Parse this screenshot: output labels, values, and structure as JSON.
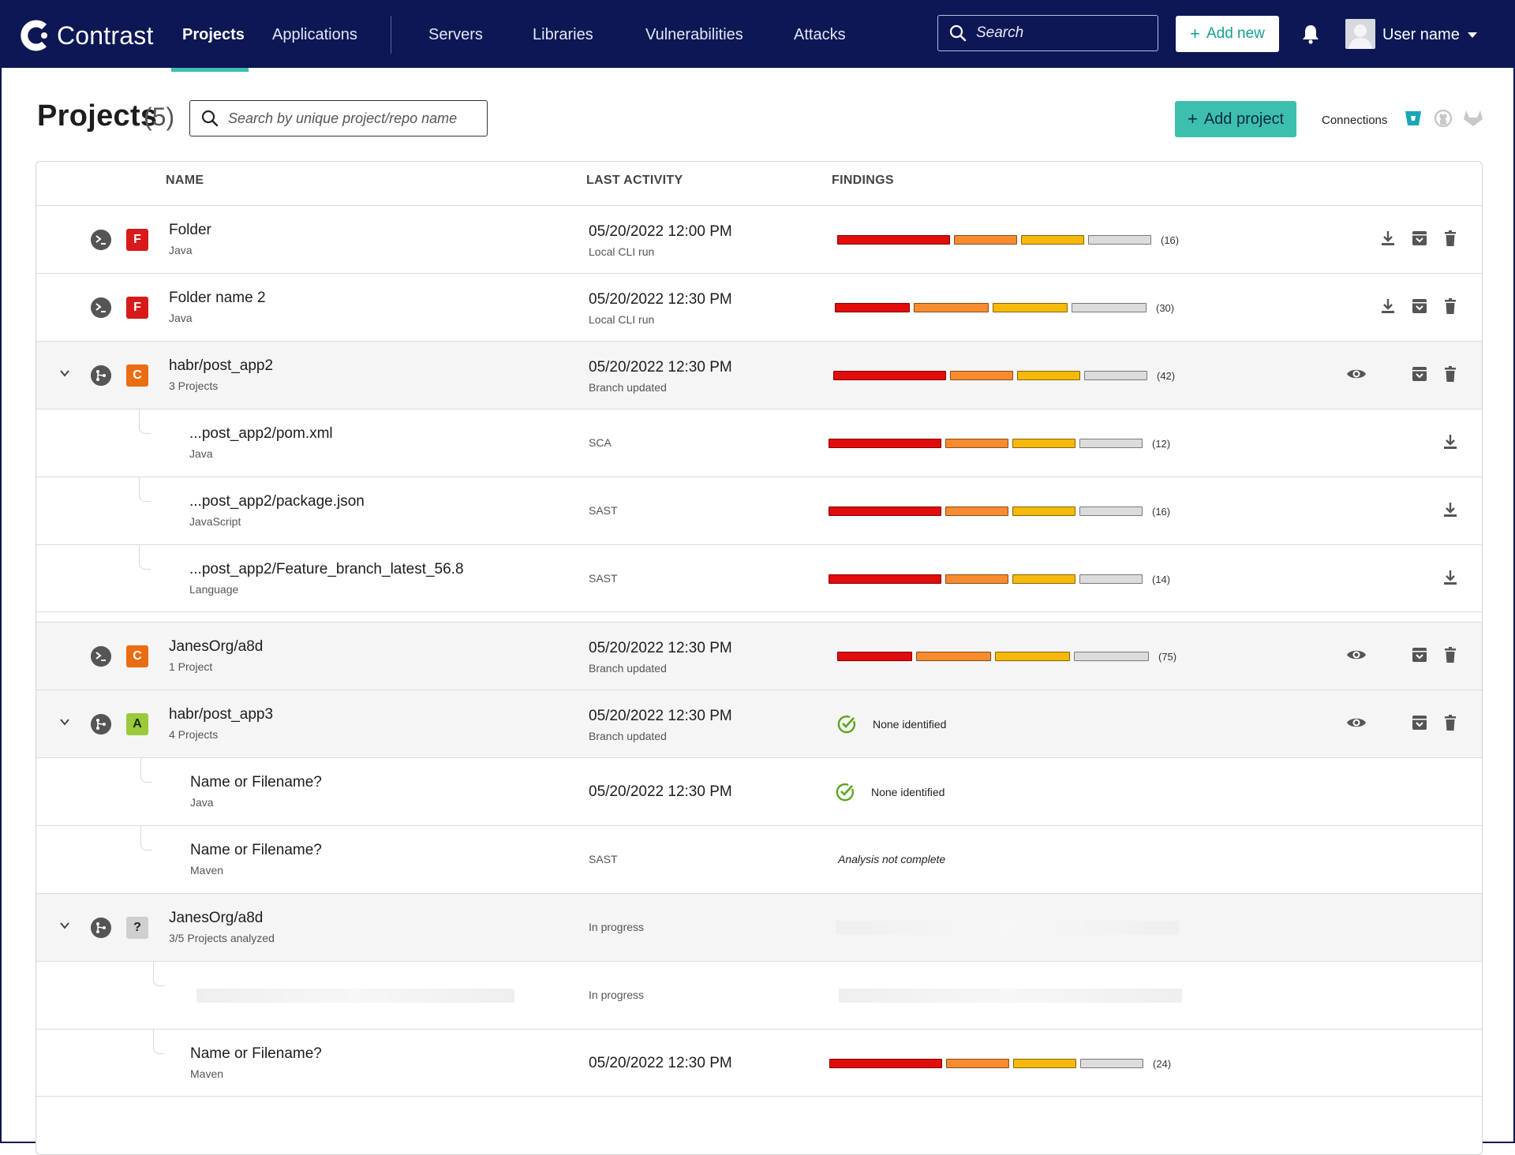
{
  "app": {
    "brand": "Contrast",
    "nav": [
      "Projects",
      "Applications",
      "Servers",
      "Libraries",
      "Vulnerabilities",
      "Attacks"
    ],
    "search_placeholder": "Search",
    "add_new_label": "Add new",
    "user_name": "User name"
  },
  "page": {
    "title": "Projects",
    "count": "(5)",
    "search_placeholder": "Search by unique project/repo name",
    "add_project_label": "Add project",
    "connections_label": "Connections"
  },
  "table": {
    "headers": {
      "name": "NAME",
      "last_activity": "LAST ACTIVITY",
      "findings": "FINDINGS"
    },
    "rows": [
      {
        "name": "Folder",
        "sub": "Java",
        "date": "05/20/2022 12:00 PM",
        "activity": "Local CLI run",
        "grade": "F",
        "count": "(16)",
        "type": "cli"
      },
      {
        "name": "Folder name 2",
        "sub": "Java",
        "date": "05/20/2022 12:30 PM",
        "activity": "Local CLI run",
        "grade": "F",
        "count": "(30)",
        "type": "cli"
      },
      {
        "name": "habr/post_app2",
        "sub": "3 Projects",
        "date": "05/20/2022 12:30 PM",
        "activity": "Branch updated",
        "grade": "C",
        "count": "(42)",
        "type": "repo"
      },
      {
        "name": "...post_app2/pom.xml",
        "sub": "Java",
        "activity": "SCA",
        "count": "(12)"
      },
      {
        "name": "...post_app2/package.json",
        "sub": "JavaScript",
        "activity": "SAST",
        "count": "(16)"
      },
      {
        "name": "...post_app2/Feature_branch_latest_56.8",
        "sub": "Language",
        "activity": "SAST",
        "count": "(14)"
      },
      {
        "name": "JanesOrg/a8d",
        "sub": "1 Project",
        "date": "05/20/2022 12:30 PM",
        "activity": "Branch updated",
        "grade": "C",
        "count": "(75)",
        "type": "cli"
      },
      {
        "name": "habr/post_app3",
        "sub": "4 Projects",
        "date": "05/20/2022 12:30 PM",
        "activity": "Branch updated",
        "grade": "A",
        "none": "None identified",
        "type": "repo"
      },
      {
        "name": "Name or Filename?",
        "sub": "Java",
        "date": "05/20/2022 12:30 PM",
        "none": "None identified"
      },
      {
        "name": "Name or Filename?",
        "sub": "Maven",
        "activity": "SAST",
        "note": "Analysis not complete"
      },
      {
        "name": "JanesOrg/a8d",
        "sub": "3/5 Projects analyzed",
        "activity": "In progress",
        "grade": "?",
        "type": "repo"
      },
      {
        "activity": "In progress"
      },
      {
        "name": "Name or Filename?",
        "sub": "Maven",
        "date": "05/20/2022 12:30 PM",
        "count": "(24)"
      }
    ]
  },
  "colors": {
    "nav_bg": "#0c1754",
    "accent": "#3dbfae",
    "critical": "#e20c0c",
    "high": "#f68b2f",
    "medium": "#f5b90c",
    "low": "#dcdcdc",
    "grade_f": "#d71a1a",
    "grade_c": "#ea6d12",
    "grade_a": "#9ac93c"
  },
  "icons": [
    "search-icon",
    "bell-icon",
    "cli-icon",
    "repo-branch-icon",
    "chevron-down-icon",
    "download-icon",
    "archive-icon",
    "trash-icon",
    "eye-icon",
    "check-circle-icon",
    "bitbucket-icon",
    "github-icon",
    "gitlab-icon"
  ]
}
